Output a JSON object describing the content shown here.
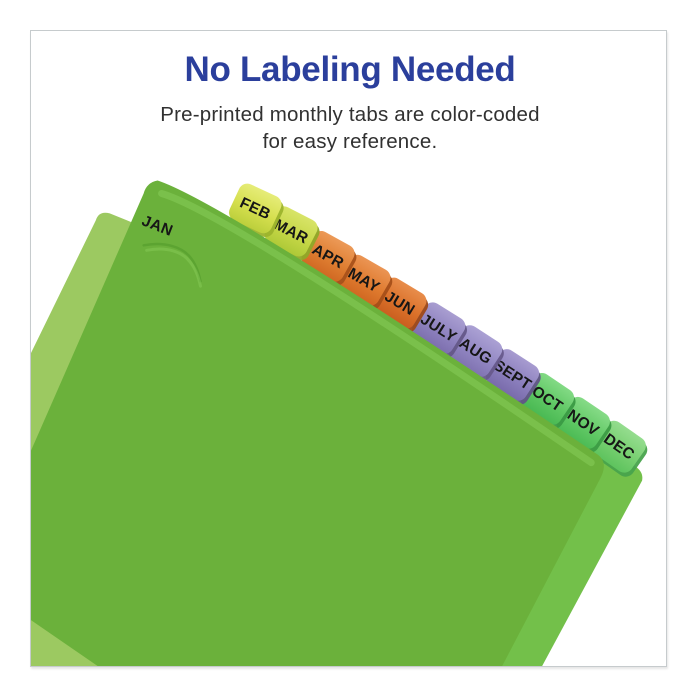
{
  "header": {
    "title": "No Labeling Needed",
    "subtitle_line1": "Pre-printed monthly tabs are color-coded",
    "subtitle_line2": "for easy reference."
  },
  "colors": {
    "title_blue": "#2b3f9c",
    "subtitle_text": "#313131",
    "frame_border": "#c6cbcd",
    "tab_text": "#161616",
    "front_sheet": "#6bb13b",
    "back_sheet": "#9cc961",
    "last_sheet": "#73c04a",
    "edge_highlight": "#8ed35f",
    "jan_fold": "#4e9727"
  },
  "tabs": [
    {
      "label": "JAN",
      "fill": "#6bb13b",
      "light": "#6bb13b",
      "dark": "#6bb13b",
      "shade": "#57a02c"
    },
    {
      "label": "FEB",
      "fill": "#d5df4e",
      "light": "#e6ec78",
      "dark": "#bccf3c",
      "shade": "#9cb32c"
    },
    {
      "label": "MAR",
      "fill": "#c6d747",
      "light": "#d8e468",
      "dark": "#aec937",
      "shade": "#8fa928"
    },
    {
      "label": "APR",
      "fill": "#df7e31",
      "light": "#ec9a58",
      "dark": "#cf6722",
      "shade": "#a8511a"
    },
    {
      "label": "MAY",
      "fill": "#df7a2e",
      "light": "#eb9554",
      "dark": "#ce6520",
      "shade": "#a54f19"
    },
    {
      "label": "JUN",
      "fill": "#da7029",
      "light": "#e88d4b",
      "dark": "#c75c1e",
      "shade": "#9e4917"
    },
    {
      "label": "JULY",
      "fill": "#8e82bf",
      "light": "#a99ed1",
      "dark": "#7b6dac",
      "shade": "#645788"
    },
    {
      "label": "AUG",
      "fill": "#9287c3",
      "light": "#aba1d4",
      "dark": "#7f72b0",
      "shade": "#675a8c"
    },
    {
      "label": "SEPT",
      "fill": "#8b7fbd",
      "light": "#a79bd0",
      "dark": "#786aaa",
      "shade": "#615487"
    },
    {
      "label": "OCT",
      "fill": "#5ec763",
      "light": "#83da85",
      "dark": "#48b852",
      "shade": "#3a9a44"
    },
    {
      "label": "NOV",
      "fill": "#62c966",
      "light": "#86db87",
      "dark": "#4bba54",
      "shade": "#3c9c45"
    },
    {
      "label": "DEC",
      "fill": "#77cf70",
      "light": "#95dd8f",
      "dark": "#5ec35e",
      "shade": "#48a34c"
    }
  ]
}
